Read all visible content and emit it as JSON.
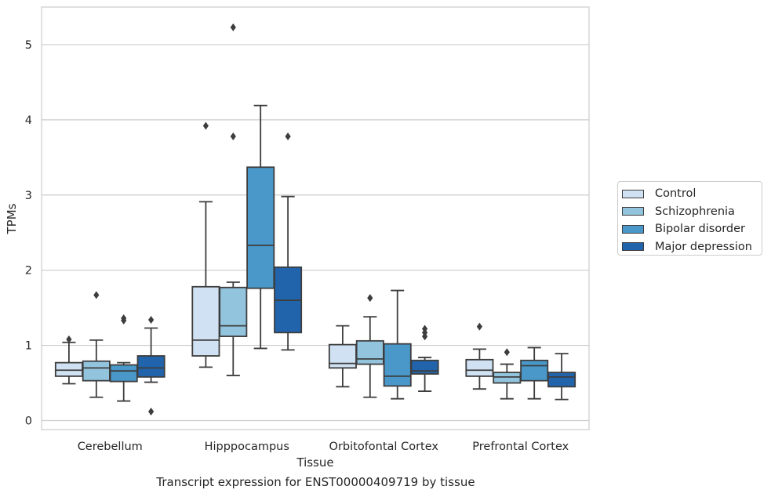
{
  "chart_data": {
    "type": "box",
    "xlabel": "Tissue",
    "ylabel": "TPMs",
    "ylim": [
      -0.12,
      5.5
    ],
    "yticks": [
      0,
      1,
      2,
      3,
      4,
      5
    ],
    "grid": true,
    "legend_position": "right",
    "categories": [
      "Cerebellum",
      "Hipppocampus",
      "Orbitofontal Cortex",
      "Prefrontal Cortex"
    ],
    "series": [
      {
        "name": "Control",
        "color": "#cfe1f2",
        "boxes": [
          {
            "whislo": 0.49,
            "q1": 0.59,
            "med": 0.67,
            "q3": 0.77,
            "whishi": 1.04,
            "fliers": [
              1.08
            ]
          },
          {
            "whislo": 0.71,
            "q1": 0.86,
            "med": 1.07,
            "q3": 1.78,
            "whishi": 2.91,
            "fliers": [
              3.92
            ]
          },
          {
            "whislo": 0.45,
            "q1": 0.7,
            "med": 0.76,
            "q3": 1.01,
            "whishi": 1.26,
            "fliers": []
          },
          {
            "whislo": 0.42,
            "q1": 0.59,
            "med": 0.67,
            "q3": 0.81,
            "whishi": 0.95,
            "fliers": [
              1.25
            ]
          }
        ]
      },
      {
        "name": "Schizophrenia",
        "color": "#93c4de",
        "boxes": [
          {
            "whislo": 0.31,
            "q1": 0.53,
            "med": 0.7,
            "q3": 0.79,
            "whishi": 1.07,
            "fliers": [
              1.67
            ]
          },
          {
            "whislo": 0.6,
            "q1": 1.12,
            "med": 1.26,
            "q3": 1.77,
            "whishi": 1.84,
            "fliers": [
              3.78,
              5.23
            ]
          },
          {
            "whislo": 0.31,
            "q1": 0.75,
            "med": 0.82,
            "q3": 1.06,
            "whishi": 1.38,
            "fliers": [
              1.63
            ]
          },
          {
            "whislo": 0.29,
            "q1": 0.5,
            "med": 0.58,
            "q3": 0.64,
            "whishi": 0.75,
            "fliers": [
              0.91
            ]
          }
        ]
      },
      {
        "name": "Bipolar disorder",
        "color": "#4a98c9",
        "boxes": [
          {
            "whislo": 0.26,
            "q1": 0.52,
            "med": 0.66,
            "q3": 0.74,
            "whishi": 0.77,
            "fliers": [
              1.33,
              1.36
            ]
          },
          {
            "whislo": 0.96,
            "q1": 1.76,
            "med": 2.33,
            "q3": 3.37,
            "whishi": 4.19,
            "fliers": []
          },
          {
            "whislo": 0.29,
            "q1": 0.46,
            "med": 0.59,
            "q3": 1.02,
            "whishi": 1.73,
            "fliers": []
          },
          {
            "whislo": 0.29,
            "q1": 0.53,
            "med": 0.73,
            "q3": 0.8,
            "whishi": 0.97,
            "fliers": []
          }
        ]
      },
      {
        "name": "Major depression",
        "color": "#2164ab",
        "boxes": [
          {
            "whislo": 0.51,
            "q1": 0.58,
            "med": 0.7,
            "q3": 0.86,
            "whishi": 1.23,
            "fliers": [
              0.12,
              1.34
            ]
          },
          {
            "whislo": 0.94,
            "q1": 1.17,
            "med": 1.6,
            "q3": 2.04,
            "whishi": 2.98,
            "fliers": [
              3.78
            ]
          },
          {
            "whislo": 0.39,
            "q1": 0.62,
            "med": 0.66,
            "q3": 0.8,
            "whishi": 0.84,
            "fliers": [
              1.12,
              1.17,
              1.22
            ]
          },
          {
            "whislo": 0.28,
            "q1": 0.45,
            "med": 0.58,
            "q3": 0.64,
            "whishi": 0.89,
            "fliers": []
          }
        ]
      }
    ]
  },
  "caption": "Transcript expression for ENST00000409719 by tissue"
}
